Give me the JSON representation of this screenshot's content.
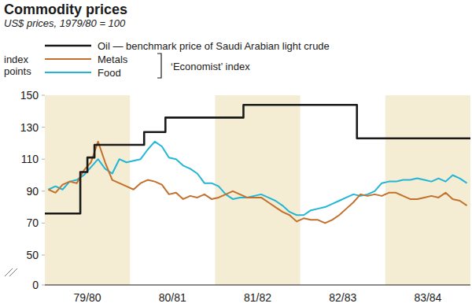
{
  "chart_data": {
    "type": "line",
    "title": "Commodity prices",
    "subtitle": "US$ prices, 1979/80 = 100",
    "ylabel": "index points",
    "annotations": [
      "‘Economist’ index"
    ],
    "legend": "top-left",
    "grid": false,
    "categories": [
      null,
      null,
      null,
      null,
      null,
      null,
      "79/80",
      null,
      null,
      null,
      null,
      null,
      null,
      null,
      null,
      null,
      null,
      null,
      "80/81",
      null,
      null,
      null,
      null,
      null,
      null,
      null,
      null,
      null,
      null,
      null,
      "81/82",
      null,
      null,
      null,
      null,
      null,
      null,
      null,
      null,
      null,
      null,
      null,
      "82/83",
      null,
      null,
      null,
      null,
      null,
      null,
      null,
      null,
      null,
      null,
      null,
      "83/84",
      null,
      null,
      null,
      null,
      null
    ],
    "ylim": [
      0,
      150
    ],
    "yticks": [
      0,
      50,
      70,
      90,
      110,
      130,
      150
    ],
    "series": [
      {
        "name": "Oil — benchmark price of Saudi Arabian light crude",
        "color": "#1a1a1a",
        "line_style": "step",
        "values": [
          76,
          76,
          76,
          76,
          76,
          102,
          111,
          119,
          119,
          119,
          119,
          119,
          119,
          119,
          127,
          127,
          127,
          136,
          136,
          136,
          136,
          136,
          136,
          136,
          136,
          136,
          136,
          136,
          144,
          144,
          144,
          144,
          144,
          144,
          144,
          144,
          144,
          144,
          144,
          144,
          144,
          144,
          144,
          144,
          123,
          123,
          123,
          123,
          123,
          123,
          123,
          123,
          123,
          123,
          123,
          123,
          123,
          123,
          123,
          123
        ]
      },
      {
        "name": "Metals",
        "color": "#c2702c",
        "values": [
          91,
          89,
          94,
          96,
          95,
          103,
          108,
          121,
          108,
          97,
          95,
          93,
          91,
          95,
          97,
          96,
          94,
          88,
          89,
          85,
          87,
          86,
          88,
          85,
          86,
          88,
          90,
          88,
          86,
          86,
          86,
          83,
          80,
          77,
          75,
          71,
          73,
          72,
          72,
          70,
          72,
          75,
          79,
          83,
          88,
          87,
          88,
          87,
          89,
          89,
          87,
          85,
          85,
          86,
          87,
          86,
          89,
          85,
          84,
          81
        ]
      },
      {
        "name": "Food",
        "color": "#22b6d6",
        "values": [
          91,
          93,
          91,
          96,
          97,
          100,
          105,
          110,
          104,
          101,
          110,
          108,
          109,
          110,
          116,
          121,
          118,
          111,
          110,
          106,
          104,
          101,
          95,
          95,
          93,
          88,
          85,
          86,
          86,
          87,
          88,
          86,
          84,
          81,
          77,
          75,
          75,
          78,
          79,
          80,
          82,
          84,
          86,
          88,
          87,
          88,
          90,
          95,
          96,
          96,
          97,
          97,
          98,
          97,
          96,
          98,
          96,
          100,
          98,
          95
        ]
      }
    ]
  }
}
